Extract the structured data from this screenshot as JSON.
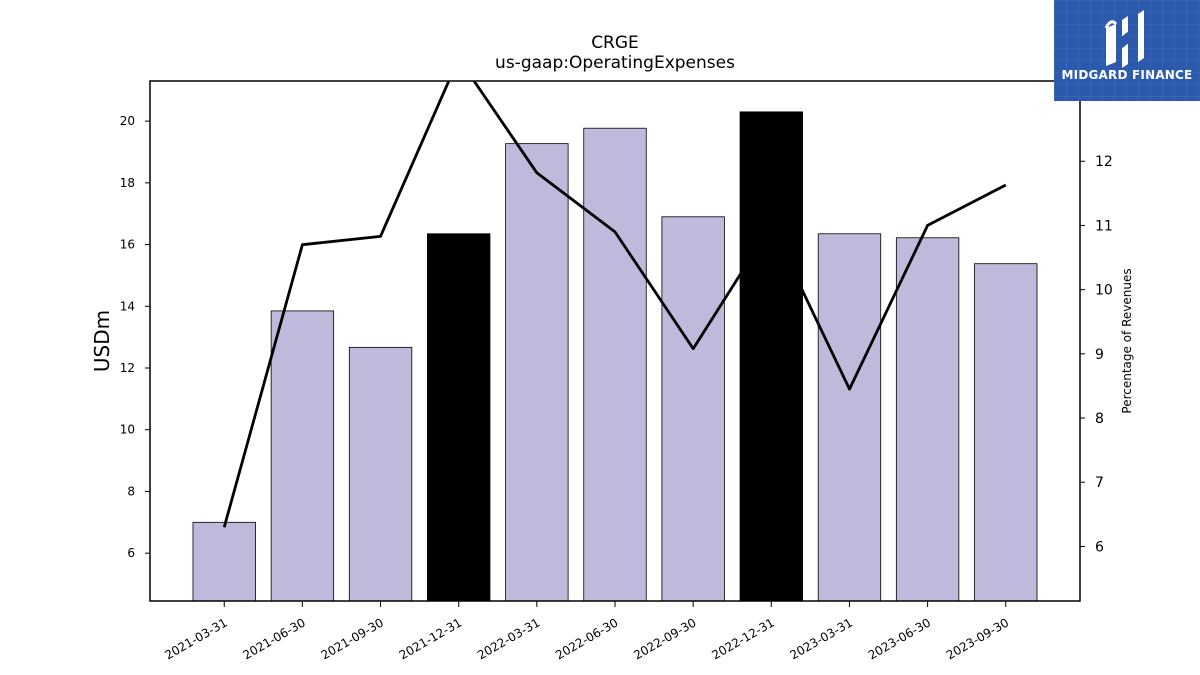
{
  "chart_data": {
    "type": "bar",
    "title": "CRGE",
    "subtitle": "us-gaap:OperatingExpenses",
    "ylabel": "USDm",
    "ylabel_right": "Percentage of Revenues",
    "categories": [
      "2021-03-31",
      "2021-06-30",
      "2021-09-30",
      "2021-12-31",
      "2022-03-31",
      "2022-06-30",
      "2022-09-30",
      "2022-12-31",
      "2023-03-31",
      "2023-06-30",
      "2023-09-30"
    ],
    "series": [
      {
        "type": "bar",
        "axis": "left",
        "values": [
          7.0,
          13.85,
          12.67,
          16.35,
          19.27,
          19.77,
          16.9,
          20.3,
          16.35,
          16.22,
          15.38
        ],
        "colors": [
          "#bebadb",
          "#bebadb",
          "#bebadb",
          "#000000",
          "#bebadb",
          "#bebadb",
          "#bebadb",
          "#000000",
          "#bebadb",
          "#bebadb",
          "#bebadb"
        ]
      },
      {
        "type": "line",
        "axis": "right",
        "color": "#000000",
        "values": [
          6.3,
          10.7,
          10.83,
          13.6,
          11.82,
          10.9,
          9.08,
          11.0,
          8.45,
          11.0,
          11.63
        ]
      }
    ],
    "ylim": [
      4.45,
      21.3
    ],
    "ylim_right": [
      5.15,
      13.25
    ],
    "yticks": [
      6,
      8,
      10,
      12,
      14,
      16,
      18,
      20
    ],
    "yticks_right": [
      6,
      7,
      8,
      9,
      10,
      11,
      12
    ],
    "grid": false,
    "legend": "none"
  },
  "logo": {
    "text": "MIDGARD FINANCE",
    "bg_color": "#2b5aad"
  }
}
